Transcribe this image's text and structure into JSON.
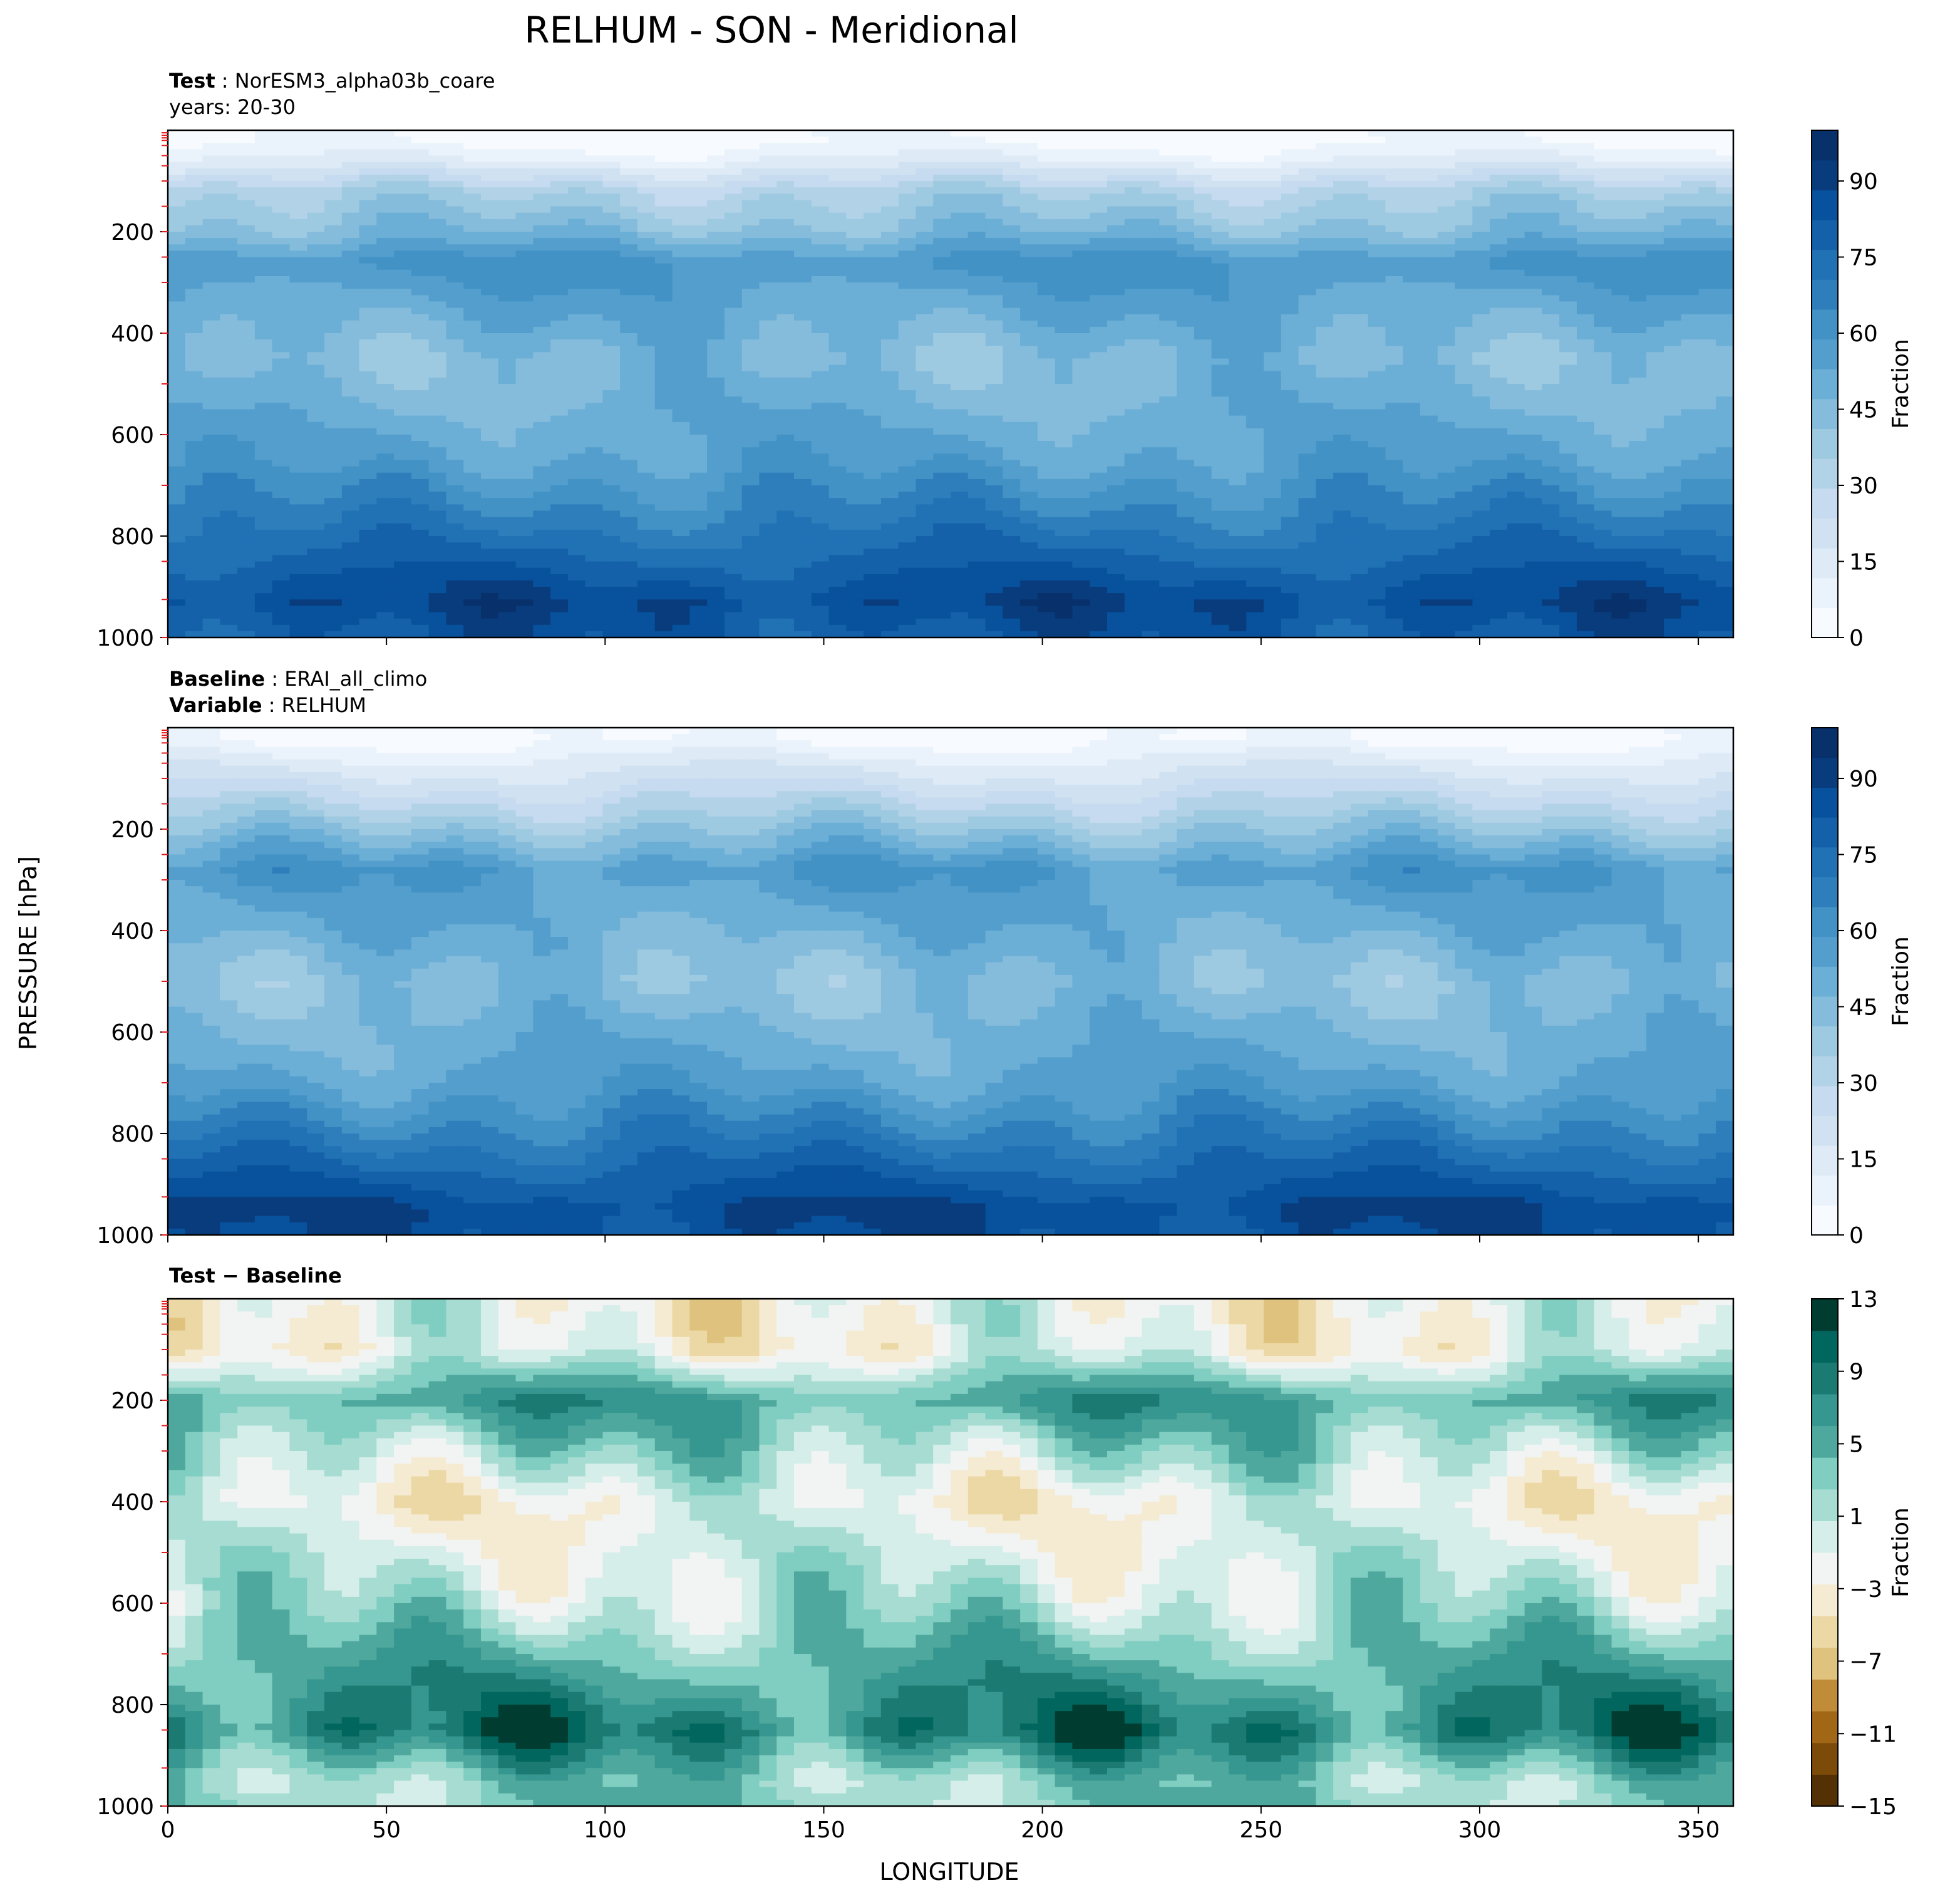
{
  "figure": {
    "title": "RELHUM - SON - Meridional",
    "ylabel": "PRESSURE [hPa]",
    "xlabel": "LONGITUDE"
  },
  "panels": [
    {
      "id": "test",
      "header_lines": [
        {
          "bold": "Test",
          "sep": " : ",
          "text": "NorESM3_alpha03b_coare"
        },
        {
          "bold": "",
          "sep": "",
          "text": "years: 20-30"
        }
      ],
      "colorbar": {
        "label": "Fraction",
        "ticks": [
          "0",
          "15",
          "30",
          "45",
          "60",
          "75",
          "90"
        ]
      }
    },
    {
      "id": "baseline",
      "header_lines": [
        {
          "bold": "Baseline",
          "sep": " : ",
          "text": "ERAI_all_climo"
        },
        {
          "bold": "Variable",
          "sep": " : ",
          "text": "RELHUM"
        }
      ],
      "colorbar": {
        "label": "Fraction",
        "ticks": [
          "0",
          "15",
          "30",
          "45",
          "60",
          "75",
          "90"
        ]
      }
    },
    {
      "id": "diff",
      "header_lines": [
        {
          "bold": "Test − Baseline",
          "sep": "",
          "text": ""
        }
      ],
      "colorbar": {
        "label": "Fraction",
        "ticks": [
          "13",
          "9",
          "5",
          "1",
          "−3",
          "−7",
          "−11",
          "−15"
        ]
      }
    }
  ],
  "chart_data": [
    {
      "type": "heatmap",
      "title": "Test : NorESM3_alpha03b_coare",
      "subtitle": "years: 20-30",
      "xlabel": "LONGITUDE",
      "ylabel": "PRESSURE [hPa]",
      "xlim": [
        0,
        358
      ],
      "ylim": [
        1000,
        0
      ],
      "x_ticks": [
        0,
        50,
        100,
        150,
        200,
        250,
        300,
        350
      ],
      "y_ticks": [
        200,
        400,
        600,
        800,
        1000
      ],
      "y_minor_ticks_hPa": [
        5,
        10,
        15,
        20,
        30,
        50,
        70,
        100,
        150,
        200,
        250,
        300,
        400,
        500,
        600,
        700,
        850,
        925,
        1000
      ],
      "colorbar_label": "Fraction",
      "colorbar_range": [
        0,
        100
      ],
      "colormap": "Blues",
      "description_by_level": [
        {
          "p": 20,
          "value": 3
        },
        {
          "p": 60,
          "value": 12
        },
        {
          "p": 120,
          "value": 33
        },
        {
          "p": 200,
          "value": 45
        },
        {
          "p": 260,
          "value": 60
        },
        {
          "p": 450,
          "value": 45
        },
        {
          "p": 650,
          "value": 55
        },
        {
          "p": 800,
          "value": 72
        },
        {
          "p": 930,
          "value": 88
        },
        {
          "p": 1000,
          "value": 82
        }
      ]
    },
    {
      "type": "heatmap",
      "title": "Baseline : ERAI_all_climo",
      "subtitle": "Variable : RELHUM",
      "xlabel": "LONGITUDE",
      "ylabel": "PRESSURE [hPa]",
      "xlim": [
        0,
        358
      ],
      "ylim": [
        1000,
        0
      ],
      "x_ticks": [
        0,
        50,
        100,
        150,
        200,
        250,
        300,
        350
      ],
      "y_ticks": [
        200,
        400,
        600,
        800,
        1000
      ],
      "colorbar_label": "Fraction",
      "colorbar_range": [
        0,
        100
      ],
      "colormap": "Blues",
      "description_by_level": [
        {
          "p": 20,
          "value": 3
        },
        {
          "p": 60,
          "value": 12
        },
        {
          "p": 150,
          "value": 30
        },
        {
          "p": 280,
          "value": 58
        },
        {
          "p": 500,
          "value": 43
        },
        {
          "p": 700,
          "value": 55
        },
        {
          "p": 850,
          "value": 75
        },
        {
          "p": 950,
          "value": 88
        },
        {
          "p": 1000,
          "value": 85
        }
      ]
    },
    {
      "type": "heatmap",
      "title": "Test − Baseline",
      "xlabel": "LONGITUDE",
      "ylabel": "PRESSURE [hPa]",
      "xlim": [
        0,
        358
      ],
      "ylim": [
        1000,
        0
      ],
      "x_ticks": [
        0,
        50,
        100,
        150,
        200,
        250,
        300,
        350
      ],
      "y_ticks": [
        200,
        400,
        600,
        800,
        1000
      ],
      "colorbar_label": "Fraction",
      "colorbar_range": [
        -15,
        13
      ],
      "colormap": "BrBG",
      "description_by_level": [
        {
          "p": 100,
          "value": -2
        },
        {
          "p": 200,
          "value": 6
        },
        {
          "p": 400,
          "value": -2
        },
        {
          "p": 600,
          "value": 1
        },
        {
          "p": 850,
          "value": 9
        },
        {
          "p": 950,
          "value": 3
        }
      ]
    }
  ],
  "colors": {
    "blues": [
      "#f7fbff",
      "#eaf2fb",
      "#deebf7",
      "#d0e2f2",
      "#c6dbef",
      "#b2d2e8",
      "#9ecae1",
      "#85bcdc",
      "#6baed6",
      "#539ecd",
      "#4292c6",
      "#2f7ebc",
      "#2171b5",
      "#1461a9",
      "#08519c",
      "#083c7d",
      "#08306b"
    ],
    "brbg": [
      "#543005",
      "#7c4a09",
      "#a16616",
      "#c08c39",
      "#dfc27d",
      "#ebd8a5",
      "#f5ebd3",
      "#f2f4f3",
      "#d6eee9",
      "#a6dcd2",
      "#80cdc1",
      "#4ea89d",
      "#35978f",
      "#1b7a71",
      "#01665e",
      "#003c30"
    ]
  }
}
